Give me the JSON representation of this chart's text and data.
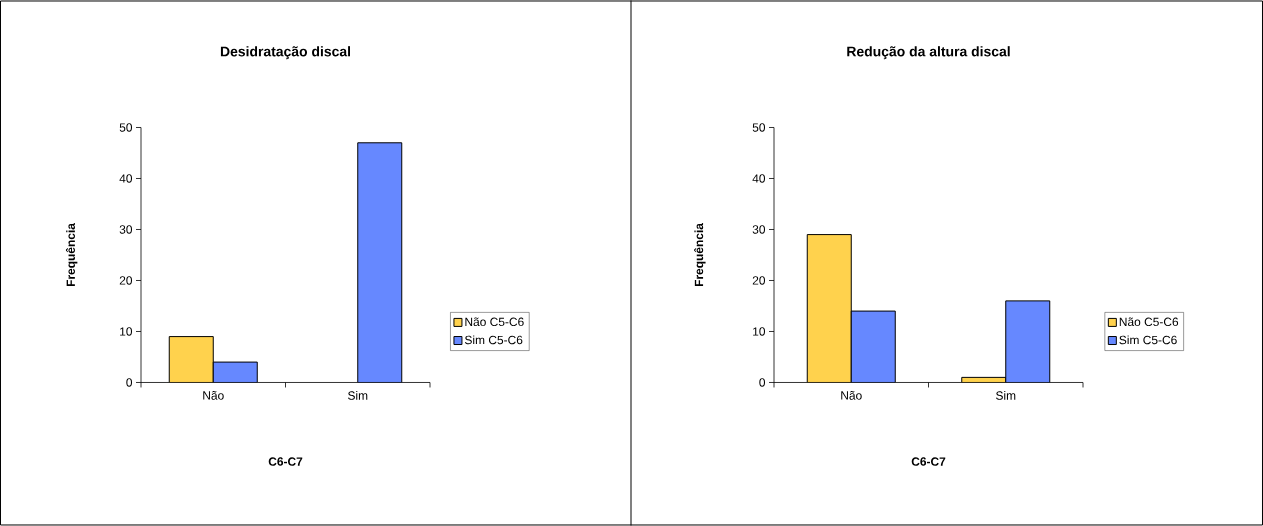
{
  "chart_data": [
    {
      "type": "bar",
      "title": "Desidratação discal",
      "xlabel": "C6-C7",
      "ylabel": "Frequência",
      "categories": [
        "Não",
        "Sim"
      ],
      "series": [
        {
          "name": "Não C5-C6",
          "color": "#ffd24d",
          "values": [
            9,
            0
          ]
        },
        {
          "name": "Sim C5-C6",
          "color": "#6688ff",
          "values": [
            4,
            47
          ]
        }
      ],
      "ylim": [
        0,
        50
      ],
      "yticks": [
        0,
        10,
        20,
        30,
        40,
        50
      ],
      "legend": "right"
    },
    {
      "type": "bar",
      "title": "Redução da altura discal",
      "xlabel": "C6-C7",
      "ylabel": "Frequência",
      "categories": [
        "Não",
        "Sim"
      ],
      "series": [
        {
          "name": "Não C5-C6",
          "color": "#ffd24d",
          "values": [
            29,
            1
          ]
        },
        {
          "name": "Sim C5-C6",
          "color": "#6688ff",
          "values": [
            14,
            16
          ]
        }
      ],
      "ylim": [
        0,
        50
      ],
      "yticks": [
        0,
        10,
        20,
        30,
        40,
        50
      ],
      "legend": "right"
    }
  ]
}
